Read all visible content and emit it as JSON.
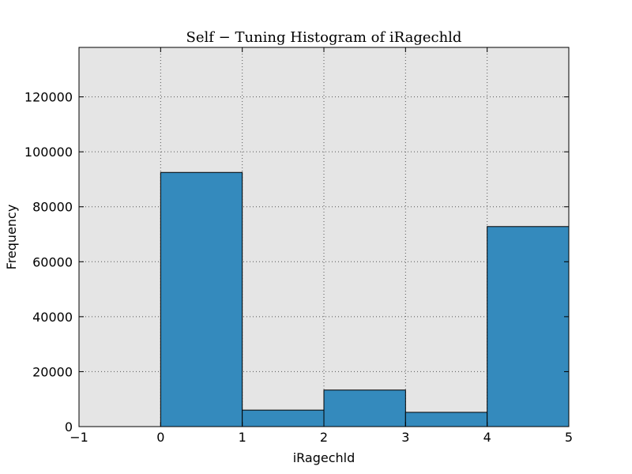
{
  "chart_data": {
    "type": "bar",
    "title": "Self − Tuning Histogram of iRagechld",
    "xlabel": "iRagechld",
    "ylabel": "Frequency",
    "xlim": [
      -1,
      5
    ],
    "ylim": [
      0,
      138000
    ],
    "grid": true,
    "x_ticks": [
      -1,
      0,
      1,
      2,
      3,
      4,
      5
    ],
    "x_tick_labels": [
      "−1",
      "0",
      "1",
      "2",
      "3",
      "4",
      "5"
    ],
    "y_ticks": [
      0,
      20000,
      40000,
      60000,
      80000,
      100000,
      120000
    ],
    "y_tick_labels": [
      "0",
      "20000",
      "40000",
      "60000",
      "80000",
      "100000",
      "120000"
    ],
    "bins": [
      {
        "x0": 0,
        "x1": 1,
        "value": 92500
      },
      {
        "x0": 1,
        "x1": 2,
        "value": 6000
      },
      {
        "x0": 2,
        "x1": 3,
        "value": 13300
      },
      {
        "x0": 3,
        "x1": 4,
        "value": 5200
      },
      {
        "x0": 4,
        "x1": 5,
        "value": 72800
      }
    ],
    "colors": {
      "bar_fill": "#348abd",
      "bar_edge": "#000000",
      "plot_background": "#e5e5e5",
      "grid": "#555555"
    }
  }
}
